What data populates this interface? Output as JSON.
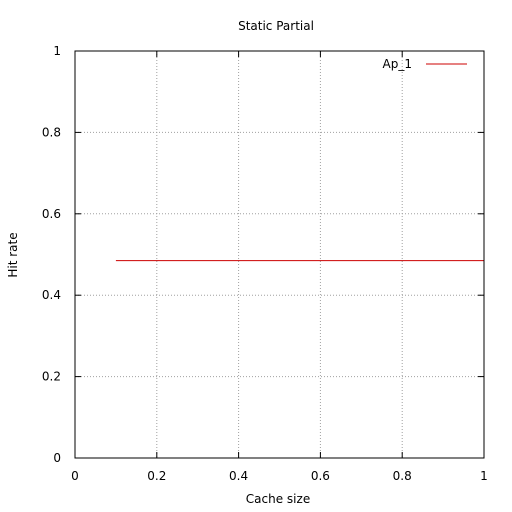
{
  "chart_data": {
    "type": "line",
    "title": "Static Partial",
    "xlabel": "Cache size",
    "ylabel": "Hit rate",
    "xlim": [
      0,
      1
    ],
    "ylim": [
      0,
      1
    ],
    "grid": true,
    "legend_position": "top-right",
    "x_ticks": [
      "0",
      "0.2",
      "0.4",
      "0.6",
      "0.8",
      "1"
    ],
    "y_ticks": [
      "0",
      "0.2",
      "0.4",
      "0.6",
      "0.8",
      "1"
    ],
    "series": [
      {
        "name": "Ap_1",
        "color": "#cc0000",
        "x": [
          0.1,
          1.0
        ],
        "y": [
          0.485,
          0.485
        ]
      }
    ]
  }
}
